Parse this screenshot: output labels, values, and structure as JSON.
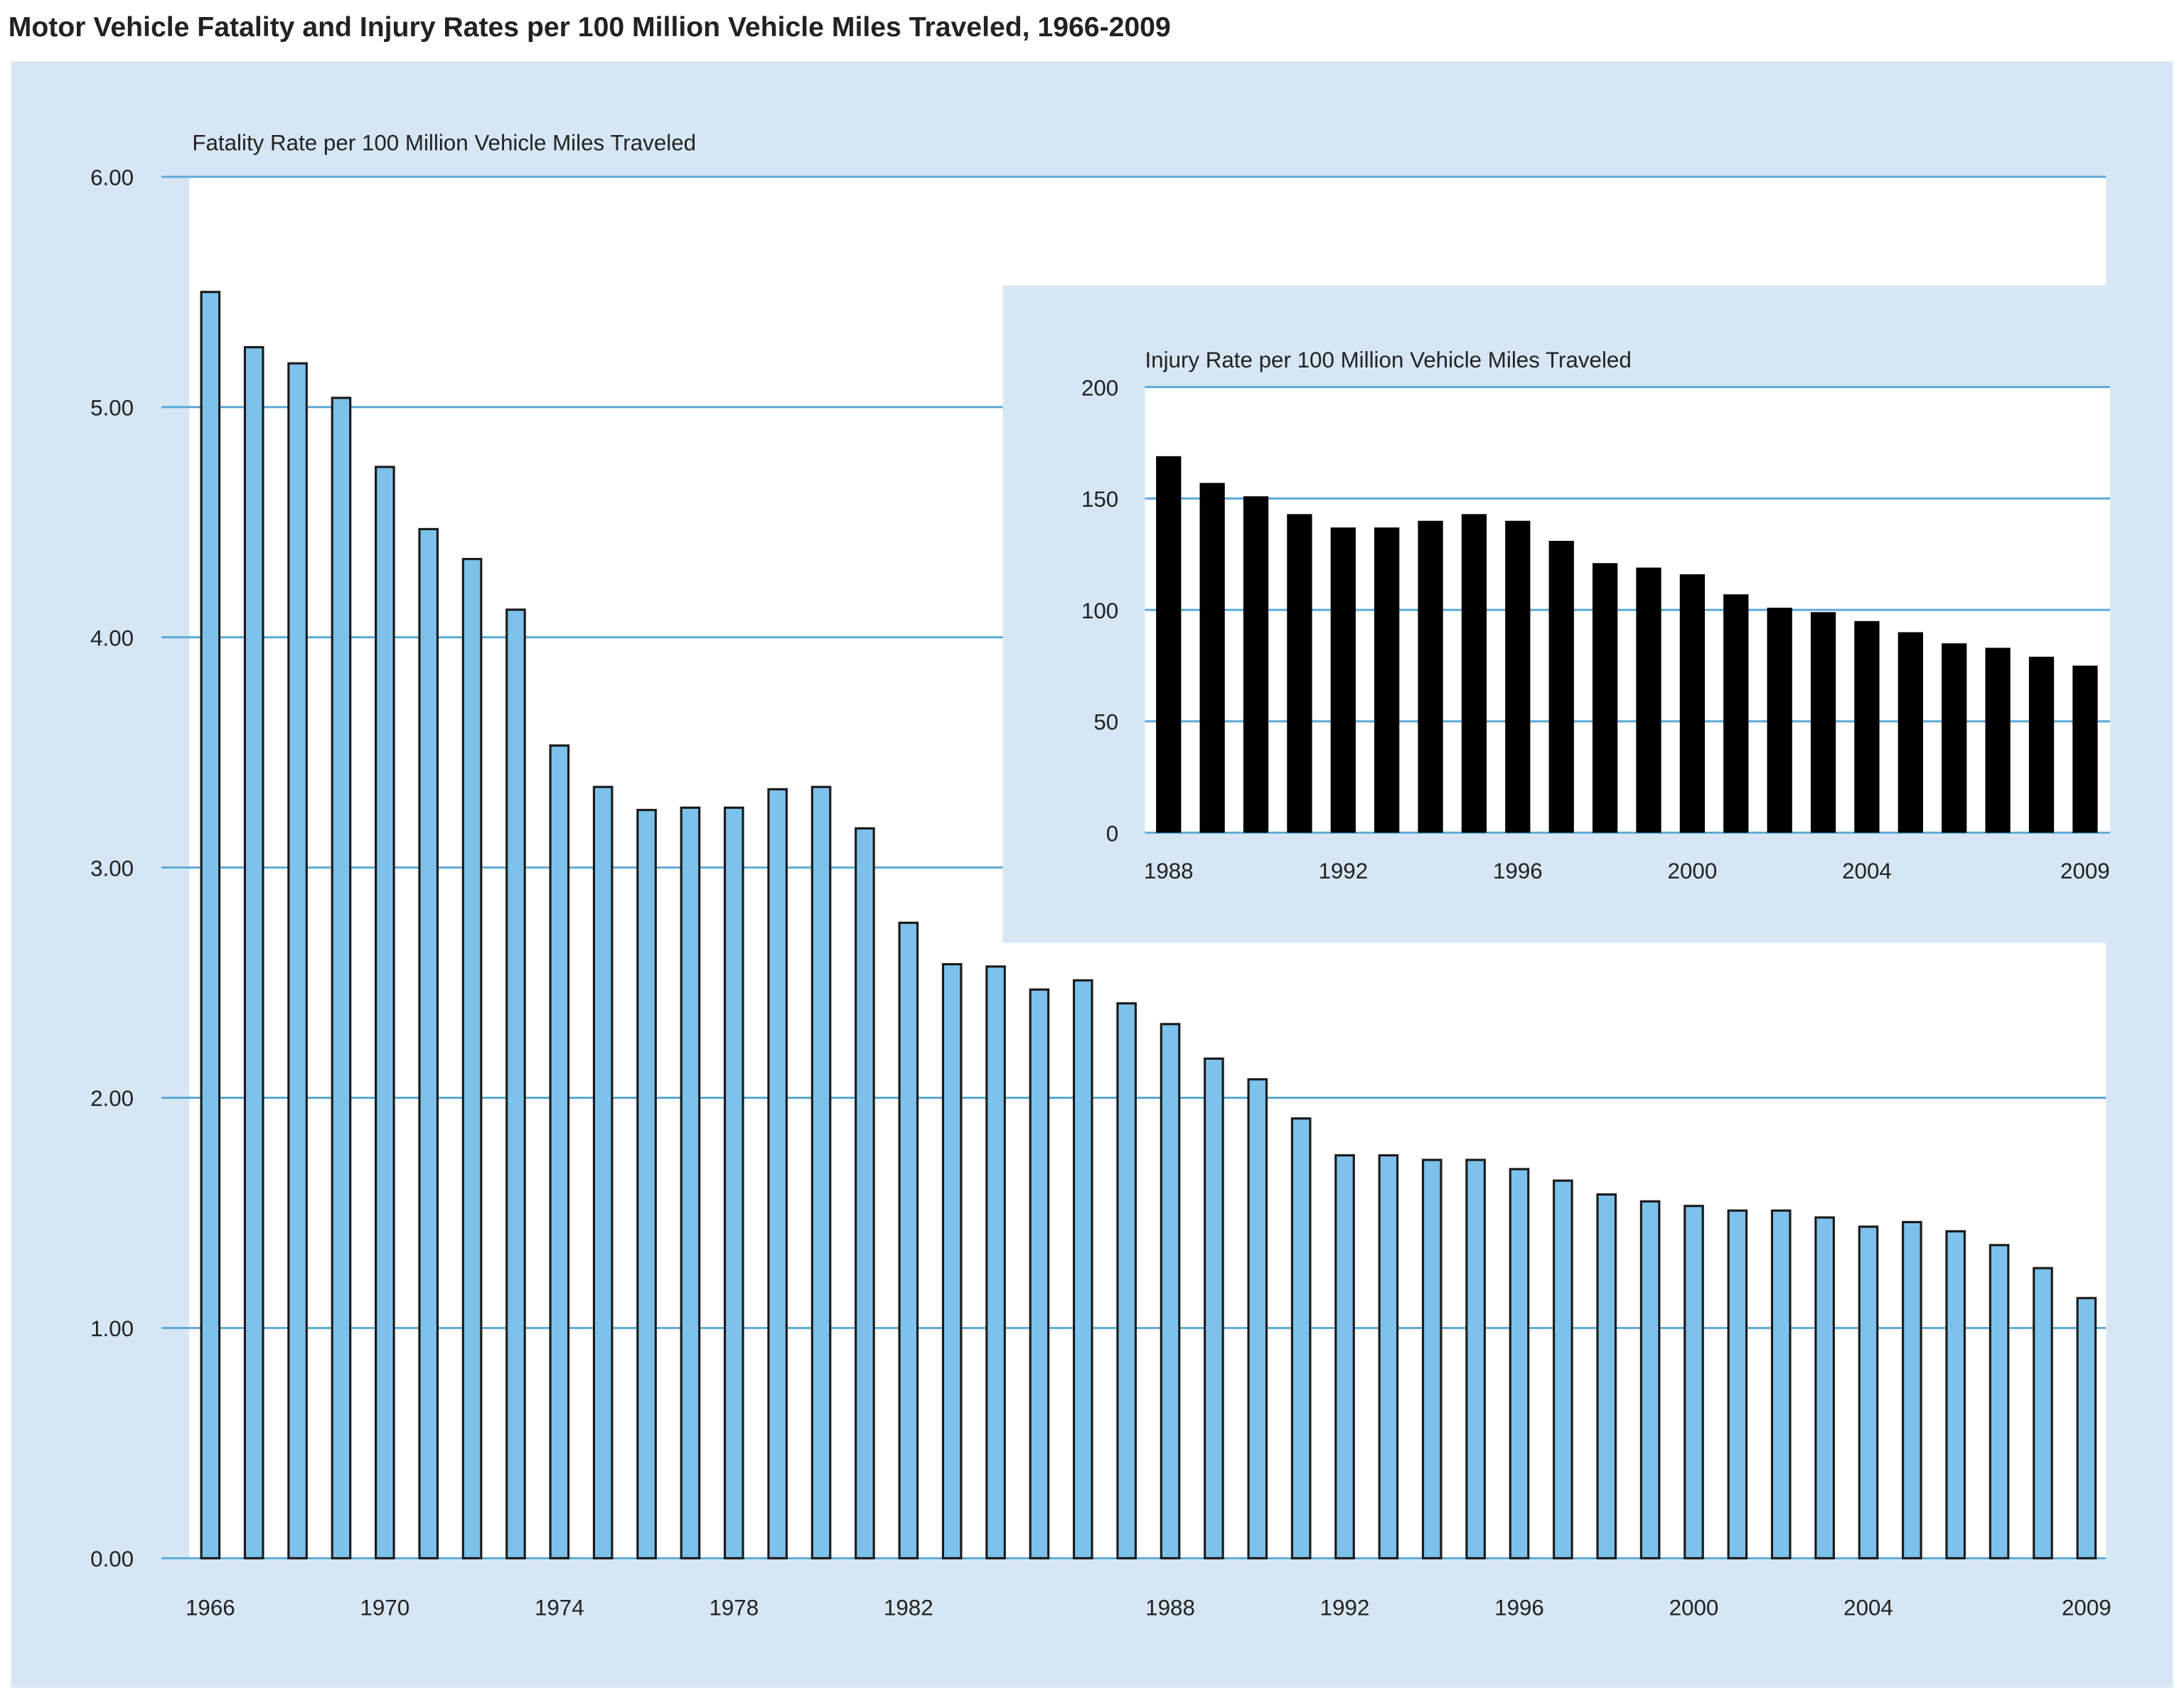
{
  "title": "Motor Vehicle Fatality and Injury Rates per 100 Million Vehicle Miles Traveled, 1966-2009",
  "colors": {
    "panel_bg": "#d6e6f4",
    "plot_bg": "#ffffff",
    "gridline": "#5aa9d6",
    "fatality_bar": "#7cc2ea",
    "bar_outline": "#1a1a1a",
    "injury_bar": "#000000",
    "text": "#222222"
  },
  "chart_data": [
    {
      "id": "fatality",
      "type": "bar",
      "title": "Fatality Rate per 100 Million Vehicle Miles Traveled",
      "xlabel": "",
      "ylabel": "",
      "ylim": [
        0,
        6
      ],
      "yticks": [
        "0.00",
        "1.00",
        "2.00",
        "3.00",
        "4.00",
        "5.00",
        "6.00"
      ],
      "xtick_labels": [
        "1966",
        "1970",
        "1974",
        "1978",
        "1982",
        "1988",
        "1992",
        "1996",
        "2000",
        "2004",
        "2009"
      ],
      "grid": true,
      "categories": [
        1966,
        1967,
        1968,
        1969,
        1970,
        1971,
        1972,
        1973,
        1974,
        1975,
        1976,
        1977,
        1978,
        1979,
        1980,
        1981,
        1982,
        1983,
        1984,
        1985,
        1986,
        1987,
        1988,
        1989,
        1990,
        1991,
        1992,
        1993,
        1994,
        1995,
        1996,
        1997,
        1998,
        1999,
        2000,
        2001,
        2002,
        2003,
        2004,
        2005,
        2006,
        2007,
        2008,
        2009
      ],
      "values": [
        5.5,
        5.26,
        5.19,
        5.04,
        4.74,
        4.47,
        4.34,
        4.12,
        3.53,
        3.35,
        3.25,
        3.26,
        3.26,
        3.34,
        3.35,
        3.17,
        2.76,
        2.58,
        2.57,
        2.47,
        2.51,
        2.41,
        2.32,
        2.17,
        2.08,
        1.91,
        1.75,
        1.75,
        1.73,
        1.73,
        1.69,
        1.64,
        1.58,
        1.55,
        1.53,
        1.51,
        1.51,
        1.48,
        1.44,
        1.46,
        1.42,
        1.36,
        1.26,
        1.13
      ]
    },
    {
      "id": "injury",
      "type": "bar",
      "title": "Injury Rate per 100 Million Vehicle Miles Traveled",
      "xlabel": "",
      "ylabel": "",
      "ylim": [
        0,
        200
      ],
      "yticks": [
        "0",
        "50",
        "100",
        "150",
        "200"
      ],
      "xtick_labels": [
        "1988",
        "1992",
        "1996",
        "2000",
        "2004",
        "2009"
      ],
      "grid": true,
      "categories": [
        1988,
        1989,
        1990,
        1991,
        1992,
        1993,
        1994,
        1995,
        1996,
        1997,
        1998,
        1999,
        2000,
        2001,
        2002,
        2003,
        2004,
        2005,
        2006,
        2007,
        2008,
        2009
      ],
      "values": [
        169,
        157,
        151,
        143,
        137,
        137,
        140,
        143,
        140,
        131,
        121,
        119,
        116,
        107,
        101,
        99,
        95,
        90,
        85,
        83,
        79,
        75
      ]
    }
  ]
}
